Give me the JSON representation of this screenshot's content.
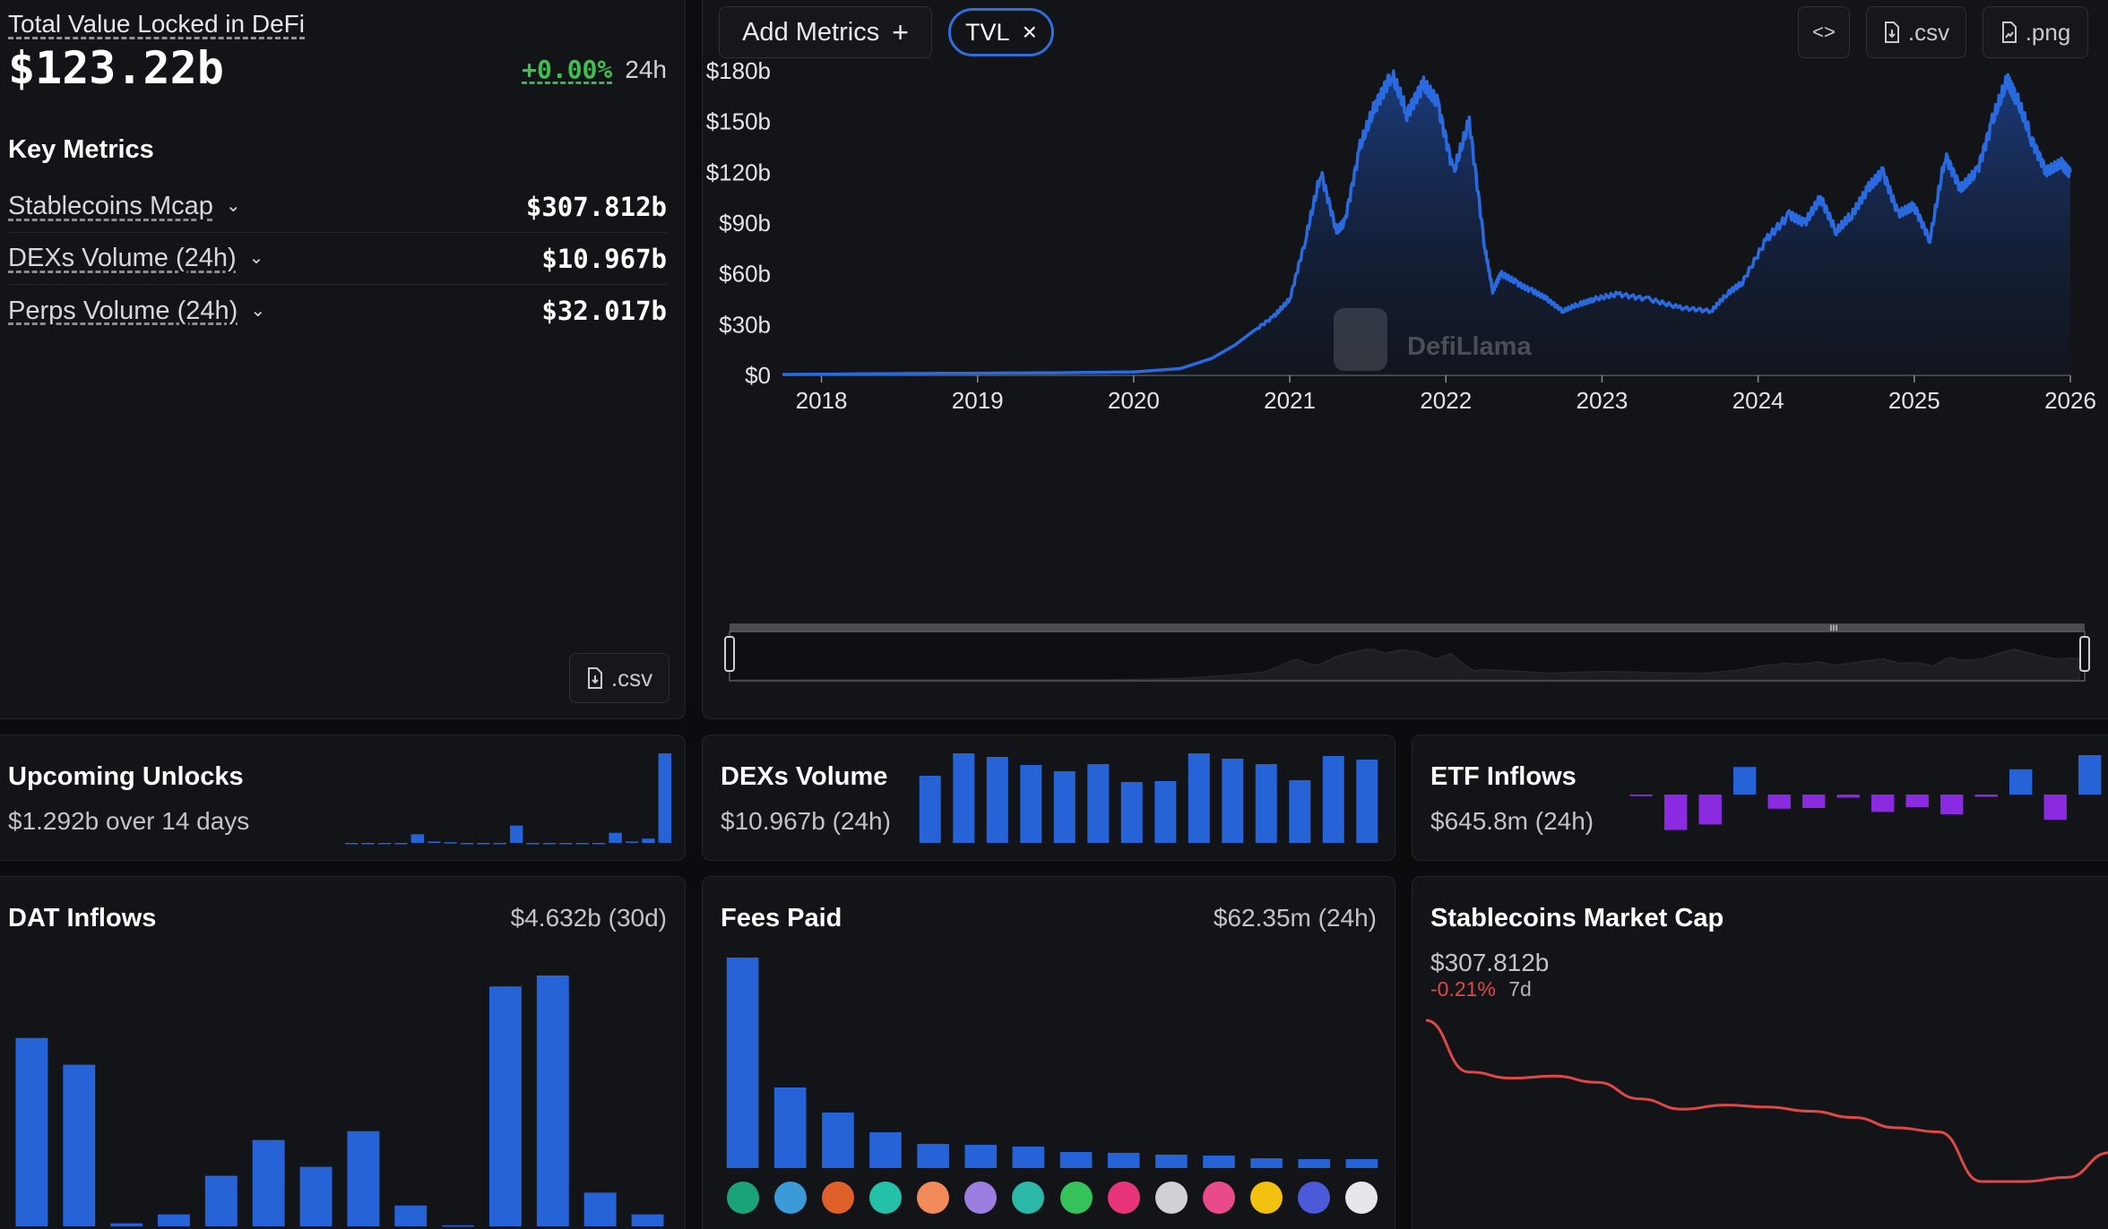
{
  "summary": {
    "tvl_label": "Total Value Locked in DeFi",
    "tvl_value": "$123.22b",
    "change_pct": "+0.00%",
    "change_period": "24h",
    "key_metrics_title": "Key Metrics",
    "metrics": [
      {
        "label": "Stablecoins Mcap",
        "value": "$307.812b"
      },
      {
        "label": "DEXs Volume (24h)",
        "value": "$10.967b"
      },
      {
        "label": "Perps Volume (24h)",
        "value": "$32.017b"
      }
    ],
    "csv_label": ".csv"
  },
  "toolbar": {
    "add_metrics_label": "Add Metrics",
    "chip_label": "TVL",
    "embed_label": "<>",
    "csv_label": ".csv",
    "png_label": ".png"
  },
  "watermark": "DefiLlama",
  "colors": {
    "accent": "#2563d6",
    "positive": "#3fbf4f",
    "negative": "#e04848",
    "purple": "#8a2be2"
  },
  "chart_data": [
    {
      "id": "tvl",
      "type": "area",
      "title": "TVL",
      "ylabel": "",
      "xlabel": "",
      "ylim": [
        0,
        180
      ],
      "y_ticks": [
        "$0",
        "$30b",
        "$60b",
        "$90b",
        "$120b",
        "$150b",
        "$180b"
      ],
      "x_ticks": [
        "2018",
        "2019",
        "2020",
        "2021",
        "2022",
        "2023",
        "2024",
        "2025",
        "2026"
      ],
      "x": [
        2017.75,
        2018.5,
        2019.5,
        2020.0,
        2020.3,
        2020.5,
        2020.65,
        2020.75,
        2020.9,
        2021.0,
        2021.1,
        2021.2,
        2021.3,
        2021.35,
        2021.45,
        2021.55,
        2021.65,
        2021.75,
        2021.85,
        2021.95,
        2022.05,
        2022.15,
        2022.25,
        2022.3,
        2022.35,
        2022.45,
        2022.55,
        2022.65,
        2022.75,
        2022.85,
        2022.95,
        2023.1,
        2023.3,
        2023.5,
        2023.7,
        2023.8,
        2023.9,
        2024.05,
        2024.2,
        2024.3,
        2024.4,
        2024.5,
        2024.6,
        2024.7,
        2024.8,
        2024.9,
        2025.0,
        2025.1,
        2025.2,
        2025.3,
        2025.4,
        2025.5,
        2025.6,
        2025.65,
        2025.75,
        2025.85,
        2025.95,
        2026.0
      ],
      "values": [
        0.5,
        1,
        1.5,
        2,
        4,
        10,
        18,
        25,
        35,
        45,
        80,
        120,
        85,
        90,
        135,
        160,
        178,
        155,
        172,
        160,
        120,
        150,
        75,
        50,
        60,
        55,
        50,
        45,
        38,
        42,
        45,
        48,
        45,
        40,
        38,
        48,
        55,
        80,
        95,
        90,
        105,
        85,
        95,
        110,
        120,
        95,
        100,
        80,
        130,
        110,
        120,
        150,
        175,
        165,
        140,
        120,
        125,
        120
      ]
    },
    {
      "id": "unlocks",
      "type": "bar",
      "title": "Upcoming Unlocks",
      "subtitle": "$1.292b over 14 days",
      "values": [
        0,
        0,
        0,
        0,
        6,
        1,
        0.5,
        0,
        0,
        0,
        12,
        0,
        0,
        0,
        0,
        0,
        7,
        1,
        3,
        62
      ]
    },
    {
      "id": "dexs",
      "type": "bar",
      "title": "DEXs Volume",
      "subtitle": "$10.967b (24h)",
      "values": [
        75,
        100,
        96,
        87,
        80,
        88,
        68,
        69,
        100,
        94,
        88,
        70,
        97,
        93
      ]
    },
    {
      "id": "etf",
      "type": "bar",
      "title": "ETF Inflows",
      "subtitle": "$645.8m (24h)",
      "values": [
        -2,
        -45,
        -38,
        35,
        -18,
        -17,
        -4,
        -22,
        -16,
        -25,
        -3,
        32,
        -32,
        50
      ]
    },
    {
      "id": "dat",
      "type": "bar",
      "title": "DAT Inflows",
      "summary": "$4.632b (30d)",
      "values": [
        190,
        163,
        3,
        12,
        51,
        87,
        60,
        96,
        21,
        1,
        242,
        253,
        34,
        12
      ]
    },
    {
      "id": "fees",
      "type": "bar",
      "title": "Fees Paid",
      "summary": "$62.35m (24h)",
      "values": [
        235,
        90,
        62,
        40,
        27,
        26,
        24,
        18,
        17,
        15,
        14,
        11,
        10,
        10
      ]
    },
    {
      "id": "stable",
      "type": "line",
      "title": "Stablecoins Market Cap",
      "subtitle": "$307.812b",
      "change": "-0.21%",
      "change_period": "7d",
      "values": [
        100,
        75,
        72,
        73,
        70,
        62,
        57,
        59,
        58,
        56,
        53,
        48,
        46,
        22,
        22,
        24,
        36
      ]
    }
  ]
}
